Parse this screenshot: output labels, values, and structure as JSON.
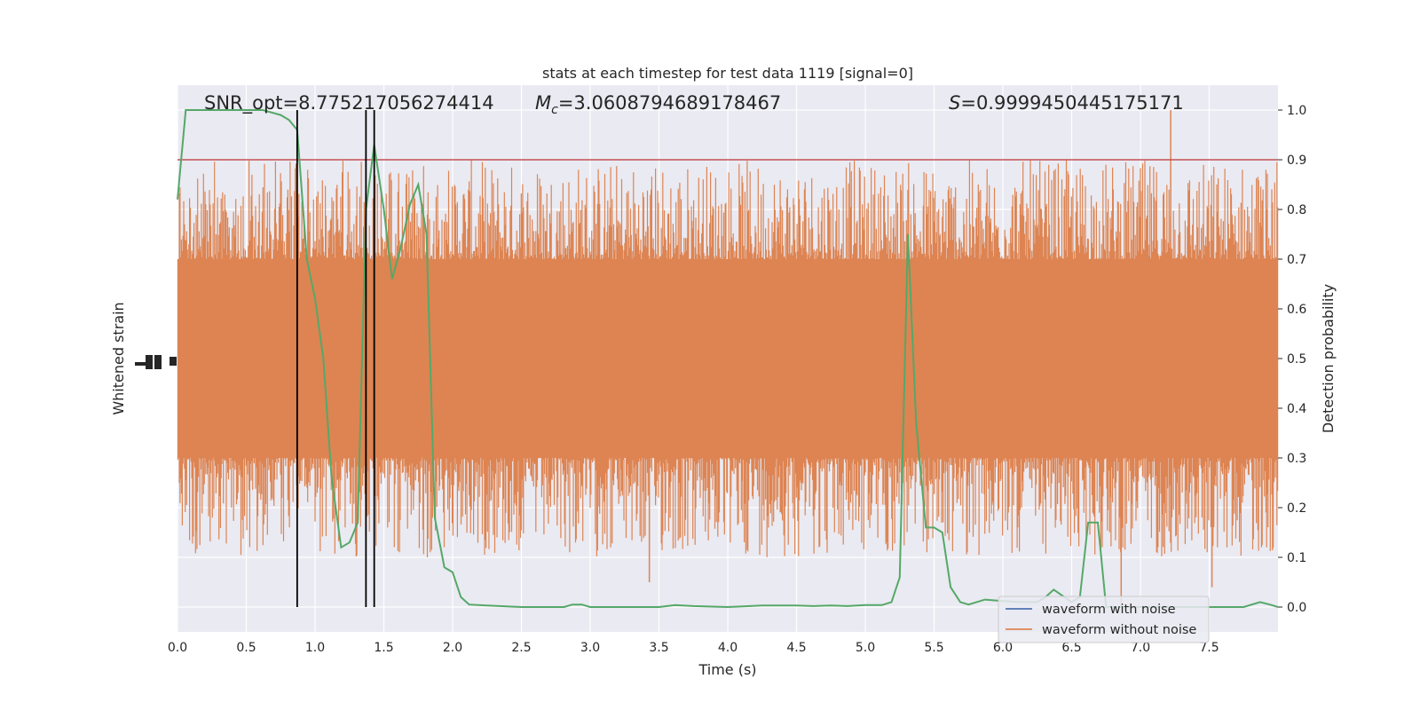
{
  "chart_data": {
    "type": "line",
    "title": "stats at each timestep for test data 1119 [signal=0]",
    "xlabel": "Time (s)",
    "ylabel_left": "Whitened strain",
    "ylabel_right": "Detection probability",
    "xlim": [
      0,
      8
    ],
    "ylim_right": [
      -0.05,
      1.05
    ],
    "x_ticks": [
      "0.0",
      "0.5",
      "1.0",
      "1.5",
      "2.0",
      "2.5",
      "3.0",
      "3.5",
      "4.0",
      "4.5",
      "5.0",
      "5.5",
      "6.0",
      "6.5",
      "7.0",
      "7.5"
    ],
    "y_ticks_right": [
      "0.0",
      "0.1",
      "0.2",
      "0.3",
      "0.4",
      "0.5",
      "0.6",
      "0.7",
      "0.8",
      "0.9",
      "1.0"
    ],
    "grid": true,
    "annotations": {
      "snr": "SNR_opt=8.775217056274414",
      "mc_symbol": "M",
      "mc_sub": "c",
      "mc_value": "=3.0608794689178467",
      "s_symbol": "S",
      "s_value": "=0.9999450445175171"
    },
    "threshold": {
      "y": 0.9,
      "color": "#c44e52"
    },
    "vertical_lines": [
      0.87,
      1.37,
      1.43
    ],
    "legend": {
      "position": "lower-right",
      "entries": [
        {
          "label": "waveform with noise",
          "color": "#4c72b0"
        },
        {
          "label": "waveform without noise",
          "color": "#dd8452"
        }
      ]
    },
    "series": [
      {
        "name": "waveform without noise",
        "color": "#dd8452",
        "style": "noise-band",
        "band_center": 0.5,
        "dense_range": [
          0.3,
          0.7
        ],
        "peak_range": [
          0.1,
          0.9
        ],
        "outliers": [
          {
            "x": 7.22,
            "y": 1.0
          },
          {
            "x": 6.85,
            "y": 0.18
          },
          {
            "x": 3.43,
            "y": 0.05
          },
          {
            "x": 6.86,
            "y": 0.0
          },
          {
            "x": 7.52,
            "y": 0.04
          }
        ]
      },
      {
        "name": "detection probability",
        "color": "#55a868",
        "x": [
          0.0,
          0.06,
          0.12,
          0.25,
          0.37,
          0.5,
          0.62,
          0.75,
          0.81,
          0.87,
          0.94,
          1.0,
          1.06,
          1.12,
          1.19,
          1.25,
          1.31,
          1.37,
          1.43,
          1.5,
          1.56,
          1.62,
          1.69,
          1.75,
          1.81,
          1.87,
          1.94,
          2.0,
          2.06,
          2.12,
          2.25,
          2.5,
          2.75,
          2.81,
          2.87,
          2.94,
          3.0,
          3.25,
          3.5,
          3.62,
          3.75,
          4.0,
          4.25,
          4.5,
          4.62,
          4.75,
          4.87,
          5.0,
          5.12,
          5.19,
          5.25,
          5.31,
          5.37,
          5.44,
          5.5,
          5.56,
          5.62,
          5.69,
          5.75,
          5.87,
          6.0,
          6.12,
          6.25,
          6.31,
          6.37,
          6.5,
          6.56,
          6.62,
          6.69,
          6.75,
          6.81,
          7.0,
          7.25,
          7.5,
          7.75,
          7.87,
          7.94,
          8.0
        ],
        "y": [
          0.82,
          1.0,
          1.0,
          1.0,
          1.0,
          1.0,
          1.0,
          0.99,
          0.98,
          0.96,
          0.7,
          0.62,
          0.5,
          0.26,
          0.12,
          0.13,
          0.17,
          0.8,
          0.93,
          0.8,
          0.66,
          0.72,
          0.81,
          0.85,
          0.75,
          0.18,
          0.08,
          0.07,
          0.02,
          0.005,
          0.003,
          0.0,
          0.0,
          0.0,
          0.005,
          0.005,
          0.0,
          0.0,
          0.0,
          0.004,
          0.002,
          0.0,
          0.003,
          0.003,
          0.002,
          0.003,
          0.002,
          0.004,
          0.004,
          0.01,
          0.06,
          0.75,
          0.37,
          0.16,
          0.16,
          0.15,
          0.04,
          0.01,
          0.005,
          0.015,
          0.012,
          0.01,
          0.01,
          0.02,
          0.035,
          0.01,
          0.02,
          0.17,
          0.17,
          0.0,
          0.0,
          0.0,
          0.0,
          0.0,
          0.0,
          0.01,
          0.005,
          0.0
        ]
      }
    ]
  }
}
